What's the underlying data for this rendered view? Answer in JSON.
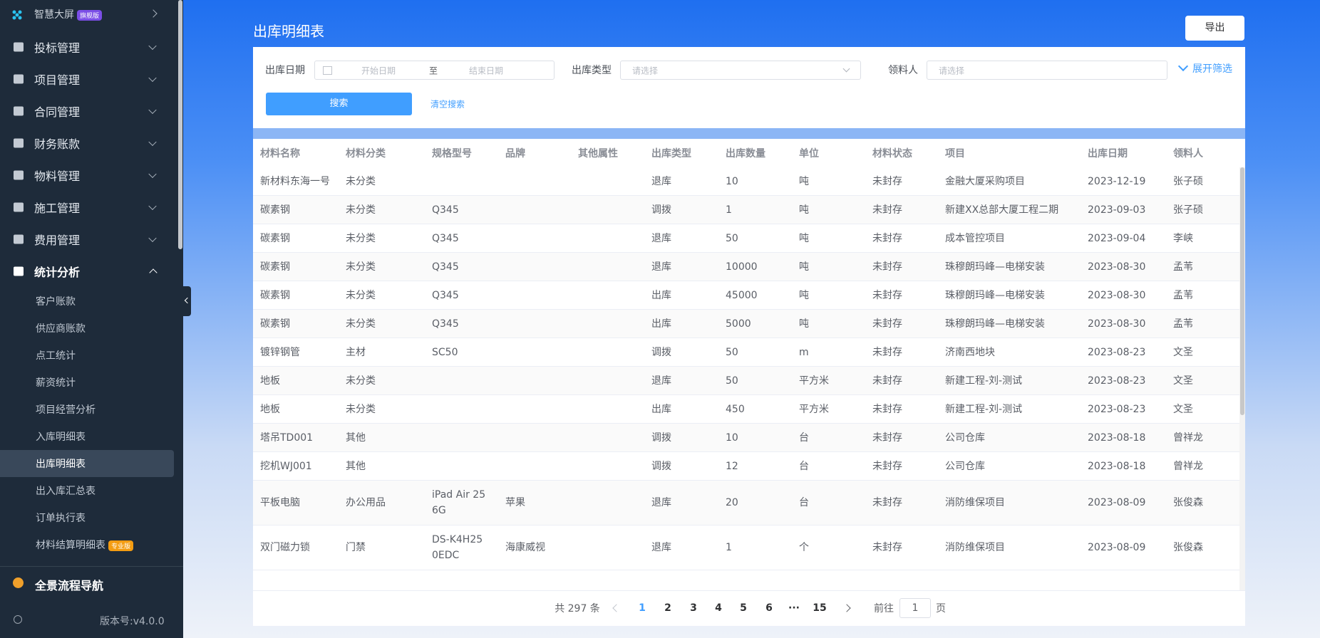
{
  "sidebar": {
    "top_item": {
      "label": "智慧大屏",
      "badge": "旗舰版"
    },
    "menu": [
      "投标管理",
      "项目管理",
      "合同管理",
      "财务账款",
      "物料管理",
      "施工管理",
      "费用管理"
    ],
    "expanded": {
      "label": "统计分析",
      "children": [
        "客户账款",
        "供应商账款",
        "点工统计",
        "薪资统计",
        "项目经营分析",
        "入库明细表",
        "出库明细表",
        "出入库汇总表",
        "订单执行表",
        "材料结算明细表"
      ],
      "last_badge": "专业版"
    },
    "nav": "全景流程导航",
    "version": "版本号:v4.0.0"
  },
  "header": {
    "title": "出库明细表",
    "export": "导出"
  },
  "filters": {
    "date_label": "出库日期",
    "date_start": "开始日期",
    "date_sep": "至",
    "date_end": "结束日期",
    "type_label": "出库类型",
    "type_placeholder": "请选择",
    "person_label": "领料人",
    "person_placeholder": "请选择",
    "expand": "展开筛选",
    "search": "搜索",
    "clear": "清空搜索"
  },
  "table": {
    "columns": [
      "材料名称",
      "材料分类",
      "规格型号",
      "品牌",
      "其他属性",
      "出库类型",
      "出库数量",
      "单位",
      "材料状态",
      "项目",
      "出库日期",
      "领料人"
    ],
    "rows": [
      [
        "新材料东海一号",
        "未分类",
        null,
        null,
        null,
        "退库",
        10,
        "吨",
        "未封存",
        "金融大厦采购项目",
        "2023-12-19",
        "张子硕"
      ],
      [
        "碳素钢",
        "未分类",
        "Q345",
        null,
        null,
        "调拨",
        1,
        "吨",
        "未封存",
        "新建XX总部大厦工程二期",
        "2023-09-03",
        "张子硕"
      ],
      [
        "碳素钢",
        "未分类",
        "Q345",
        null,
        null,
        "退库",
        50,
        "吨",
        "未封存",
        "成本管控项目",
        "2023-09-04",
        "李峡"
      ],
      [
        "碳素钢",
        "未分类",
        "Q345",
        null,
        null,
        "退库",
        10000,
        "吨",
        "未封存",
        "珠穆朗玛峰—电梯安装",
        "2023-08-30",
        "孟苇"
      ],
      [
        "碳素钢",
        "未分类",
        "Q345",
        null,
        null,
        "出库",
        45000,
        "吨",
        "未封存",
        "珠穆朗玛峰—电梯安装",
        "2023-08-30",
        "孟苇"
      ],
      [
        "碳素钢",
        "未分类",
        "Q345",
        null,
        null,
        "出库",
        5000,
        "吨",
        "未封存",
        "珠穆朗玛峰—电梯安装",
        "2023-08-30",
        "孟苇"
      ],
      [
        "镀锌钢管",
        "主材",
        "SC50",
        null,
        null,
        "调拨",
        50,
        "m",
        "未封存",
        "济南西地块",
        "2023-08-23",
        "文圣"
      ],
      [
        "地板",
        "未分类",
        null,
        null,
        null,
        "退库",
        50,
        "平方米",
        "未封存",
        "新建工程-刘-测试",
        "2023-08-23",
        "文圣"
      ],
      [
        "地板",
        "未分类",
        null,
        null,
        null,
        "出库",
        450,
        "平方米",
        "未封存",
        "新建工程-刘-测试",
        "2023-08-23",
        "文圣"
      ],
      [
        "塔吊TD001",
        "其他",
        null,
        null,
        null,
        "调拨",
        10,
        "台",
        "未封存",
        "公司仓库",
        "2023-08-18",
        "曾祥龙"
      ],
      [
        "挖机WJ001",
        "其他",
        null,
        null,
        null,
        "调拨",
        12,
        "台",
        "未封存",
        "公司仓库",
        "2023-08-18",
        "曾祥龙"
      ],
      [
        "平板电脑",
        "办公用品",
        "iPad Air 256G",
        "苹果",
        null,
        "退库",
        20,
        "台",
        "未封存",
        "消防维保项目",
        "2023-08-09",
        "张俊森"
      ],
      [
        "双门磁力锁",
        "门禁",
        "DS-K4H250EDC",
        "海康威视",
        null,
        "退库",
        1,
        "个",
        "未封存",
        "消防维保项目",
        "2023-08-09",
        "张俊森"
      ]
    ]
  },
  "pagination": {
    "total": "共 297 条",
    "pages": [
      1,
      2,
      3,
      4,
      5,
      6
    ],
    "ellipsis": "···",
    "last": 15,
    "goto": "前往",
    "goto_value": 1,
    "goto_unit": "页"
  }
}
